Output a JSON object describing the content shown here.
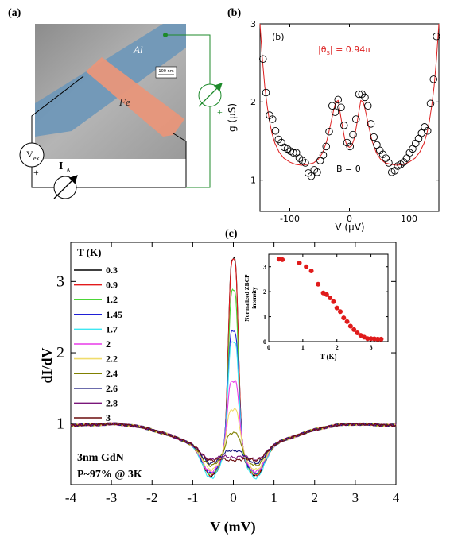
{
  "panel_a": {
    "label": "(a)",
    "al_label": "Al",
    "fe_label": "Fe",
    "scale_label": "100 nm",
    "vex_main": "V",
    "vex_sub": "ex",
    "ia_main": "I",
    "ia_sub": "A",
    "plus_left": "+",
    "plus_right": "+",
    "colors": {
      "al": "#6e97b8",
      "fe": "#e8967a",
      "green": "#1d8a2a",
      "substrate": "#a8a8a8"
    }
  },
  "chart_data": [
    {
      "id": "b",
      "type": "scatter",
      "panel_label": "(b)",
      "inner_label": "(b)",
      "annotation_theta": "|θ",
      "annotation_theta_sub": "S",
      "annotation_theta_rest": "| = 0.94π",
      "annotation_b": "B = 0",
      "xlabel": "V (μV)",
      "ylabel": "g (μS)",
      "xlim": [
        -150,
        150
      ],
      "ylim": [
        0.6,
        3
      ],
      "xticks": [
        -100,
        0,
        100
      ],
      "yticks": [
        1,
        2,
        3
      ],
      "xtick_labels": [
        "-100",
        "0",
        "100"
      ],
      "ytick_labels": [
        "1",
        "2",
        "3"
      ],
      "marker_color": "#000000",
      "fit_color": "#dd1f1f",
      "points": {
        "x": [
          -145,
          -140,
          -134,
          -129,
          -124,
          -119,
          -114,
          -109,
          -104,
          -99,
          -94,
          -89,
          -84,
          -79,
          -74,
          -69,
          -64,
          -59,
          -54,
          -49,
          -44,
          -39,
          -34,
          -29,
          -24,
          -19,
          -14,
          -9,
          -4,
          1,
          6,
          11,
          16,
          21,
          26,
          31,
          36,
          41,
          46,
          51,
          56,
          61,
          66,
          71,
          76,
          81,
          86,
          91,
          96,
          101,
          106,
          111,
          116,
          121,
          126,
          131,
          136,
          141,
          146
        ],
        "y": [
          2.55,
          2.12,
          1.83,
          1.78,
          1.63,
          1.52,
          1.48,
          1.42,
          1.4,
          1.37,
          1.35,
          1.35,
          1.28,
          1.25,
          1.22,
          1.09,
          1.05,
          1.13,
          1.1,
          1.25,
          1.32,
          1.43,
          1.62,
          1.95,
          1.87,
          2.03,
          1.93,
          1.7,
          1.48,
          1.43,
          1.58,
          1.78,
          2.1,
          2.1,
          2.06,
          1.95,
          1.72,
          1.55,
          1.45,
          1.38,
          1.33,
          1.28,
          1.22,
          1.1,
          1.12,
          1.18,
          1.2,
          1.23,
          1.28,
          1.35,
          1.4,
          1.47,
          1.53,
          1.6,
          1.68,
          1.63,
          1.98,
          2.29,
          2.84
        ]
      },
      "fit": {
        "x": [
          -150,
          -146,
          -142,
          -138,
          -134,
          -130,
          -125,
          -118,
          -110,
          -100,
          -90,
          -80,
          -70,
          -60,
          -52,
          -45,
          -38,
          -32,
          -27,
          -23,
          -19,
          -16,
          -12,
          -8,
          -4,
          0,
          4,
          8,
          12,
          16,
          19,
          23,
          27,
          32,
          38,
          45,
          52,
          60,
          70,
          80,
          90,
          100,
          110,
          118,
          125,
          130,
          134,
          138,
          142,
          146,
          150
        ],
        "y": [
          3.0,
          2.55,
          2.2,
          1.95,
          1.75,
          1.6,
          1.47,
          1.36,
          1.28,
          1.23,
          1.2,
          1.19,
          1.2,
          1.22,
          1.27,
          1.35,
          1.5,
          1.7,
          1.88,
          2.0,
          2.02,
          1.88,
          1.7,
          1.53,
          1.44,
          1.42,
          1.44,
          1.53,
          1.7,
          1.88,
          2.02,
          2.0,
          1.88,
          1.7,
          1.5,
          1.35,
          1.27,
          1.22,
          1.2,
          1.19,
          1.2,
          1.23,
          1.28,
          1.36,
          1.47,
          1.6,
          1.75,
          1.95,
          2.2,
          2.55,
          3.0
        ]
      }
    },
    {
      "id": "c",
      "type": "line",
      "panel_label": "(c)",
      "xlabel": "V (mV)",
      "ylabel": "dI/dV",
      "xlim": [
        -4,
        4
      ],
      "ylim": [
        0.15,
        3.55
      ],
      "xticks": [
        -4,
        -3,
        -2,
        -1,
        0,
        1,
        2,
        3,
        4
      ],
      "xtick_labels": [
        "-4",
        "-3",
        "-2",
        "-1",
        "0",
        "1",
        "2",
        "3",
        "4"
      ],
      "yticks": [
        1,
        2,
        3
      ],
      "ytick_labels": [
        "1",
        "2",
        "3"
      ],
      "legend_title": "T (K)",
      "legend_placement": "top-left",
      "annotation_line1": "3nm GdN",
      "annotation_line2": "P~97% @ 3K",
      "series": [
        {
          "name": "0.3",
          "color": "#000000",
          "peak": 3.32,
          "dip": 0.27,
          "width": 0.1
        },
        {
          "name": "0.9",
          "color": "#e31a1c",
          "peak": 3.3,
          "dip": 0.28,
          "width": 0.1
        },
        {
          "name": "1.2",
          "color": "#4cd637",
          "peak": 2.87,
          "dip": 0.3,
          "width": 0.1
        },
        {
          "name": "1.45",
          "color": "#1f1fd6",
          "peak": 2.3,
          "dip": 0.31,
          "width": 0.11
        },
        {
          "name": "1.7",
          "color": "#3ee7f2",
          "peak": 2.15,
          "dip": 0.24,
          "width": 0.11
        },
        {
          "name": "2",
          "color": "#e83ae8",
          "peak": 1.6,
          "dip": 0.33,
          "width": 0.12
        },
        {
          "name": "2.2",
          "color": "#f0dc6c",
          "peak": 1.2,
          "dip": 0.36,
          "width": 0.13
        },
        {
          "name": "2.4",
          "color": "#808000",
          "peak": 0.87,
          "dip": 0.42,
          "width": 0.14
        },
        {
          "name": "2.6",
          "color": "#14147a",
          "peak": 0.62,
          "dip": 0.45,
          "width": 0.16
        },
        {
          "name": "2.8",
          "color": "#7a167a",
          "peak": 0.53,
          "dip": 0.5,
          "width": 0.2
        },
        {
          "name": "3",
          "color": "#6b0d0d",
          "peak": 0.49,
          "dip": 0.49,
          "width": 0.3
        }
      ]
    },
    {
      "id": "c-inset",
      "type": "scatter",
      "xlabel": "T (K)",
      "ylabel_line1": "Normalized ZBCP",
      "ylabel_line2": "intensity",
      "xlim": [
        0,
        3.5
      ],
      "ylim": [
        0,
        3.5
      ],
      "xticks": [
        0,
        1,
        2,
        3
      ],
      "xtick_labels": [
        "0",
        "1",
        "2",
        "3"
      ],
      "yticks": [
        0,
        1,
        2,
        3
      ],
      "ytick_labels": [
        "0",
        "1",
        "2",
        "3"
      ],
      "marker_color": "#e01b1b",
      "x": [
        0.3,
        0.4,
        0.9,
        1.1,
        1.25,
        1.45,
        1.6,
        1.7,
        1.8,
        1.9,
        2.0,
        2.1,
        2.2,
        2.3,
        2.4,
        2.5,
        2.6,
        2.7,
        2.8,
        2.9,
        3.0,
        3.1,
        3.2,
        3.3
      ],
      "y": [
        3.3,
        3.28,
        3.15,
        3.0,
        2.83,
        2.3,
        1.95,
        1.88,
        1.75,
        1.6,
        1.35,
        1.2,
        0.95,
        0.8,
        0.62,
        0.48,
        0.35,
        0.25,
        0.18,
        0.12,
        0.12,
        0.11,
        0.1,
        0.1
      ]
    }
  ]
}
